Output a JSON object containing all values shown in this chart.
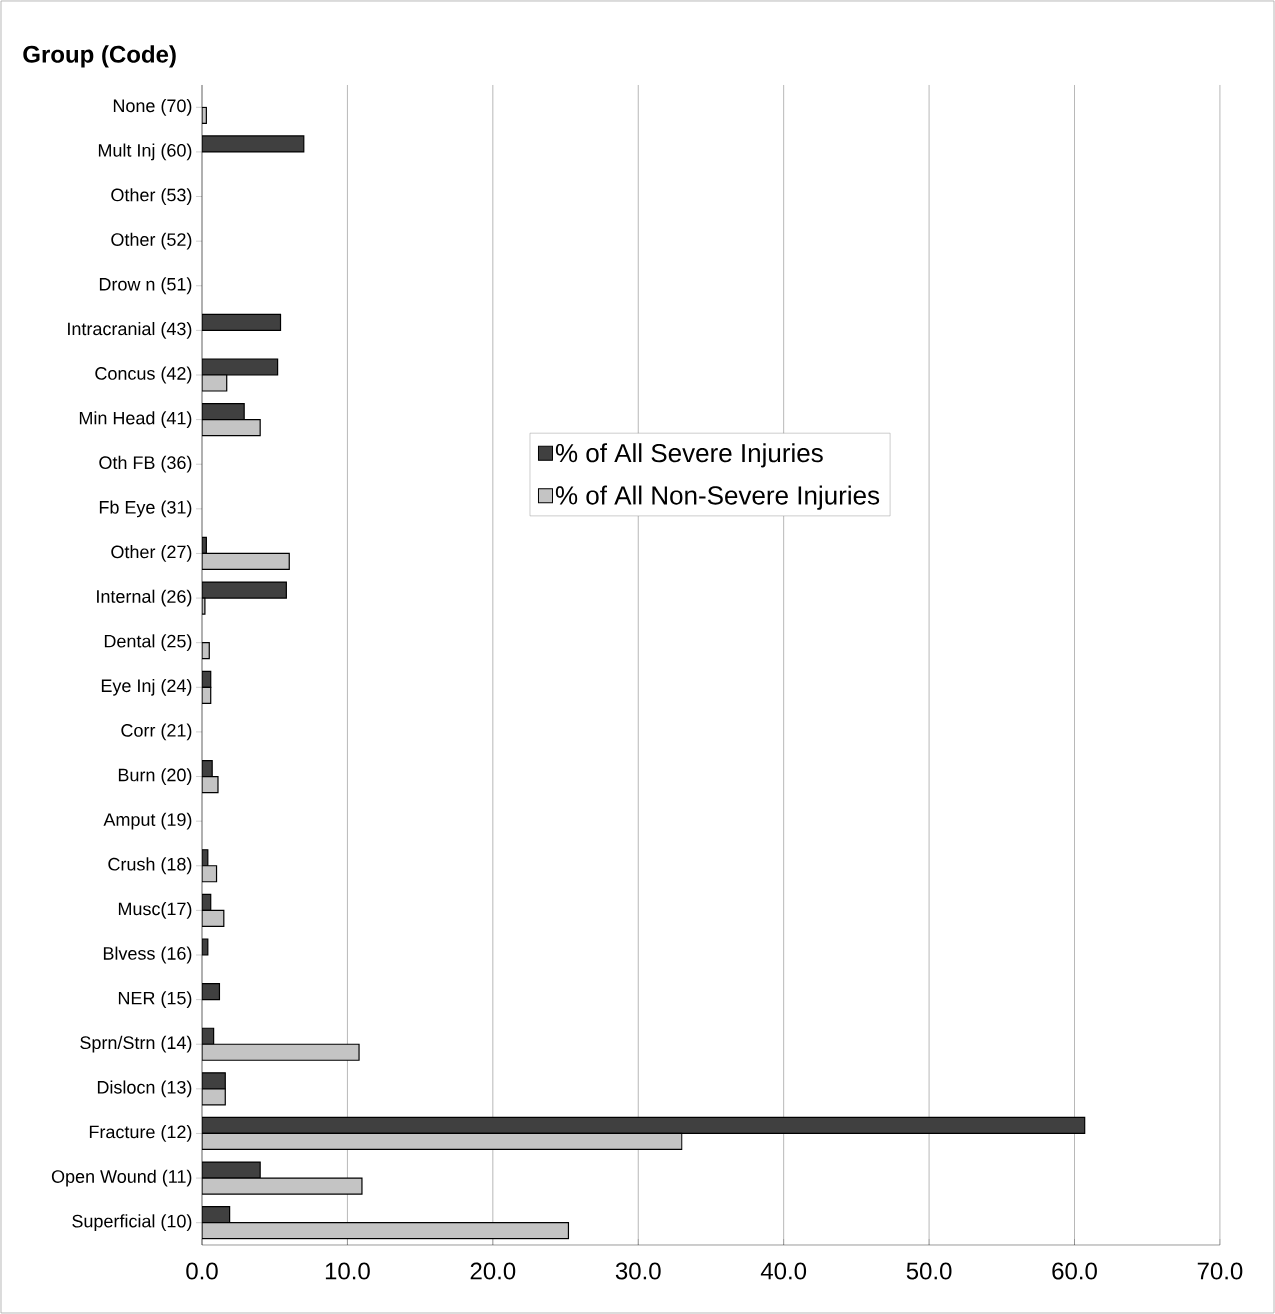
{
  "chart_data": {
    "type": "bar",
    "orientation": "horizontal",
    "ylabel": "Group (Code)",
    "categories": [
      "None (70)",
      "Mult Inj (60)",
      "Other (53)",
      "Other (52)",
      "Drow n (51)",
      "Intracranial (43)",
      "Concus (42)",
      "Min Head (41)",
      "Oth FB (36)",
      "Fb Eye (31)",
      "Other (27)",
      "Internal (26)",
      "Dental (25)",
      "Eye Inj (24)",
      "Corr (21)",
      "Burn (20)",
      "Amput (19)",
      "Crush (18)",
      "Musc(17)",
      "Blvess (16)",
      "NER (15)",
      "Sprn/Strn (14)",
      "Dislocn (13)",
      "Fracture (12)",
      "Open Wound (11)",
      "Superficial (10)"
    ],
    "series": [
      {
        "name": "% of All Severe Injuries",
        "color": "#404040",
        "values": [
          null,
          7.0,
          null,
          null,
          null,
          5.4,
          5.2,
          2.9,
          null,
          null,
          0.3,
          5.8,
          null,
          0.6,
          null,
          0.7,
          null,
          0.4,
          0.6,
          0.4,
          1.2,
          0.8,
          1.6,
          60.7,
          4.0,
          1.9
        ]
      },
      {
        "name": "% of All Non-Severe Injuries",
        "color": "#c4c4c4",
        "values": [
          0.3,
          null,
          null,
          null,
          null,
          null,
          1.7,
          4.0,
          null,
          null,
          6.0,
          0.2,
          0.5,
          0.6,
          null,
          1.1,
          null,
          1.0,
          1.5,
          null,
          null,
          10.8,
          1.6,
          33.0,
          11.0,
          25.2
        ]
      }
    ],
    "xlim": [
      0,
      70
    ],
    "xticks": [
      {
        "value": 0,
        "label": "0.0"
      },
      {
        "value": 10,
        "label": "10.0"
      },
      {
        "value": 20,
        "label": "20.0"
      },
      {
        "value": 30,
        "label": "30.0"
      },
      {
        "value": 40,
        "label": "40.0"
      },
      {
        "value": 50,
        "label": "50.0"
      },
      {
        "value": 60,
        "label": "60.0"
      },
      {
        "value": 70,
        "label": "70.0"
      }
    ],
    "grid": "x",
    "legend": "center"
  }
}
